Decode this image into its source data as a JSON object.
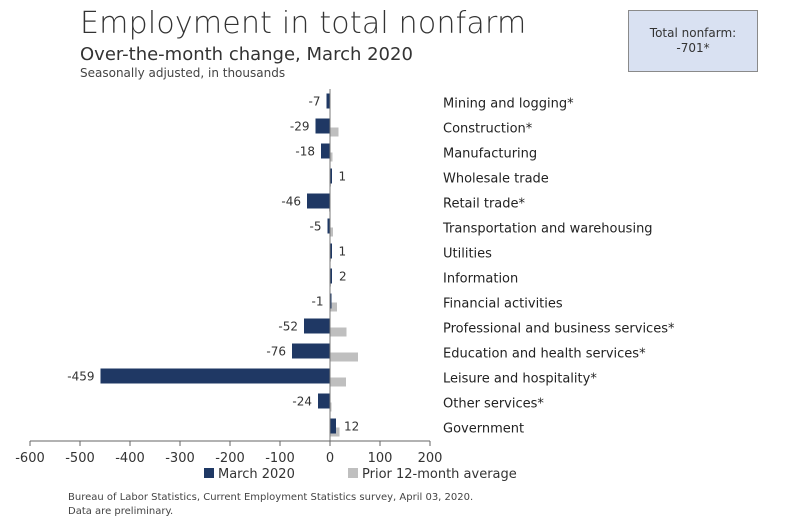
{
  "header": {
    "title": "Employment in total nonfarm",
    "subtitle": "Over-the-month change, March 2020",
    "note": "Seasonally adjusted, in thousands"
  },
  "callout": {
    "label": "Total nonfarm:",
    "value": "-701*"
  },
  "chart_data": {
    "type": "bar",
    "orientation": "horizontal",
    "categories": [
      "Mining and logging*",
      "Construction*",
      "Manufacturing",
      "Wholesale trade",
      "Retail trade*",
      "Transportation and warehousing",
      "Utilities",
      "Information",
      "Financial activities",
      "Professional and business services*",
      "Education and health services*",
      "Leisure and hospitality*",
      "Other services*",
      "Government"
    ],
    "series": [
      {
        "name": "March 2020",
        "color": "#1f3864",
        "values": [
          -7,
          -29,
          -18,
          1,
          -46,
          -5,
          1,
          2,
          -1,
          -52,
          -76,
          -459,
          -24,
          12
        ],
        "labels": [
          "-7",
          "-29",
          "-18",
          "1",
          "-46",
          "-5",
          "1",
          "2",
          "-1",
          "-52",
          "-76",
          "-459",
          "-24",
          "12"
        ]
      },
      {
        "name": "Prior 12-month average",
        "color": "#bfbfbf",
        "values": [
          -1,
          17,
          5,
          1,
          -2,
          6,
          0,
          1,
          14,
          33,
          56,
          32,
          3,
          19
        ]
      }
    ],
    "xlim": [
      -600,
      200
    ],
    "xticks": [
      -600,
      -500,
      -400,
      -300,
      -200,
      -100,
      0,
      100,
      200
    ],
    "xtick_labels": [
      "-600",
      "-500",
      "-400",
      "-300",
      "-200",
      "-100",
      "0",
      "100",
      "200"
    ],
    "xlabel": "",
    "ylabel": "",
    "grid": false,
    "legend": "bottom"
  },
  "footer": {
    "source": "Bureau of Labor Statistics, Current Employment Statistics survey, April 03, 2020.",
    "prelim": "Data are preliminary."
  }
}
